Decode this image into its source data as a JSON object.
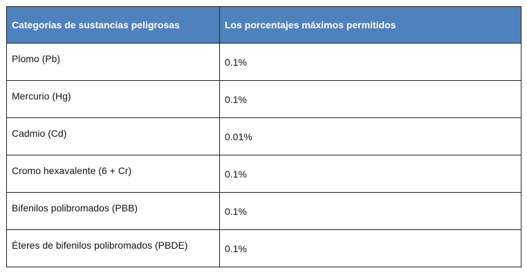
{
  "table": {
    "headers": {
      "category": "Categorías de sustancias peligrosas",
      "max_percentage": "Los porcentajes máximos permitidos"
    },
    "rows": [
      {
        "category": "Plomo (Pb)",
        "max_percentage": "0.1%"
      },
      {
        "category": "Mercurio (Hg)",
        "max_percentage": "0.1%"
      },
      {
        "category": "Cadmio (Cd)",
        "max_percentage": "0.01%"
      },
      {
        "category": "Cromo hexavalente (6 + Cr)",
        "max_percentage": "0.1%"
      },
      {
        "category": "Bifenilos polibromados (PBB)",
        "max_percentage": "0.1%"
      },
      {
        "category": "Éteres de bifenilos polibromados (PBDE)",
        "max_percentage": "0.1%"
      }
    ]
  },
  "colors": {
    "header_bg": "#4f81bd",
    "header_text": "#ffffff",
    "border": "#1f1f1f"
  }
}
